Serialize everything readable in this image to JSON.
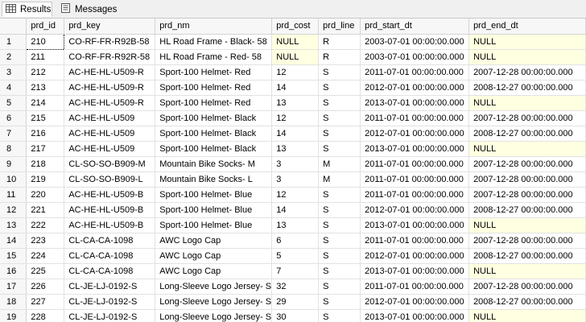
{
  "tabs": [
    {
      "label": "Results",
      "icon": "grid-icon",
      "active": true
    },
    {
      "label": "Messages",
      "icon": "messages-icon",
      "active": false
    }
  ],
  "columns": [
    "prd_id",
    "prd_key",
    "prd_nm",
    "prd_cost",
    "prd_line",
    "prd_start_dt",
    "prd_end_dt"
  ],
  "rows": [
    [
      "1",
      "210",
      "CO-RF-FR-R92B-58",
      "HL Road Frame - Black- 58",
      "NULL",
      "R",
      "2003-07-01 00:00:00.000",
      "NULL"
    ],
    [
      "2",
      "211",
      "CO-RF-FR-R92R-58",
      "HL Road Frame - Red- 58",
      "NULL",
      "R",
      "2003-07-01 00:00:00.000",
      "NULL"
    ],
    [
      "3",
      "212",
      "AC-HE-HL-U509-R",
      "Sport-100 Helmet- Red",
      "12",
      "S",
      "2011-07-01 00:00:00.000",
      "2007-12-28 00:00:00.000"
    ],
    [
      "4",
      "213",
      "AC-HE-HL-U509-R",
      "Sport-100 Helmet- Red",
      "14",
      "S",
      "2012-07-01 00:00:00.000",
      "2008-12-27 00:00:00.000"
    ],
    [
      "5",
      "214",
      "AC-HE-HL-U509-R",
      "Sport-100 Helmet- Red",
      "13",
      "S",
      "2013-07-01 00:00:00.000",
      "NULL"
    ],
    [
      "6",
      "215",
      "AC-HE-HL-U509",
      "Sport-100 Helmet- Black",
      "12",
      "S",
      "2011-07-01 00:00:00.000",
      "2007-12-28 00:00:00.000"
    ],
    [
      "7",
      "216",
      "AC-HE-HL-U509",
      "Sport-100 Helmet- Black",
      "14",
      "S",
      "2012-07-01 00:00:00.000",
      "2008-12-27 00:00:00.000"
    ],
    [
      "8",
      "217",
      "AC-HE-HL-U509",
      "Sport-100 Helmet- Black",
      "13",
      "S",
      "2013-07-01 00:00:00.000",
      "NULL"
    ],
    [
      "9",
      "218",
      "CL-SO-SO-B909-M",
      "Mountain Bike Socks- M",
      "3",
      "M",
      "2011-07-01 00:00:00.000",
      "2007-12-28 00:00:00.000"
    ],
    [
      "10",
      "219",
      "CL-SO-SO-B909-L",
      "Mountain Bike Socks- L",
      "3",
      "M",
      "2011-07-01 00:00:00.000",
      "2007-12-28 00:00:00.000"
    ],
    [
      "11",
      "220",
      "AC-HE-HL-U509-B",
      "Sport-100 Helmet- Blue",
      "12",
      "S",
      "2011-07-01 00:00:00.000",
      "2007-12-28 00:00:00.000"
    ],
    [
      "12",
      "221",
      "AC-HE-HL-U509-B",
      "Sport-100 Helmet- Blue",
      "14",
      "S",
      "2012-07-01 00:00:00.000",
      "2008-12-27 00:00:00.000"
    ],
    [
      "13",
      "222",
      "AC-HE-HL-U509-B",
      "Sport-100 Helmet- Blue",
      "13",
      "S",
      "2013-07-01 00:00:00.000",
      "NULL"
    ],
    [
      "14",
      "223",
      "CL-CA-CA-1098",
      "AWC Logo Cap",
      "6",
      "S",
      "2011-07-01 00:00:00.000",
      "2007-12-28 00:00:00.000"
    ],
    [
      "15",
      "224",
      "CL-CA-CA-1098",
      "AWC Logo Cap",
      "5",
      "S",
      "2012-07-01 00:00:00.000",
      "2008-12-27 00:00:00.000"
    ],
    [
      "16",
      "225",
      "CL-CA-CA-1098",
      "AWC Logo Cap",
      "7",
      "S",
      "2013-07-01 00:00:00.000",
      "NULL"
    ],
    [
      "17",
      "226",
      "CL-JE-LJ-0192-S",
      "Long-Sleeve Logo Jersey- S",
      "32",
      "S",
      "2011-07-01 00:00:00.000",
      "2007-12-28 00:00:00.000"
    ],
    [
      "18",
      "227",
      "CL-JE-LJ-0192-S",
      "Long-Sleeve Logo Jersey- S",
      "29",
      "S",
      "2012-07-01 00:00:00.000",
      "2008-12-27 00:00:00.000"
    ],
    [
      "19",
      "228",
      "CL-JE-LJ-0192-S",
      "Long-Sleeve Logo Jersey- S",
      "30",
      "S",
      "2013-07-01 00:00:00.000",
      "NULL"
    ]
  ],
  "colors": {
    "null_bg": "#ffffe1",
    "header_bg": "#f7f7f7",
    "tabbar_bg": "#f0f0f0"
  }
}
